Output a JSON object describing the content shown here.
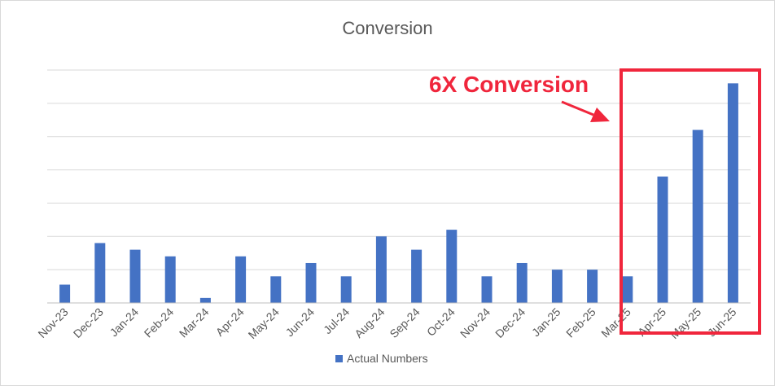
{
  "chart_data": {
    "type": "bar",
    "title": "Conversion",
    "xlabel": "",
    "ylabel": "",
    "categories": [
      "Nov-23",
      "Dec-23",
      "Jan-24",
      "Feb-24",
      "Mar-24",
      "Apr-24",
      "May-24",
      "Jun-24",
      "Jul-24",
      "Aug-24",
      "Sep-24",
      "Oct-24",
      "Nov-24",
      "Dec-24",
      "Jan-25",
      "Feb-25",
      "Mar-25",
      "Apr-25",
      "May-25",
      "Jun-25"
    ],
    "series": [
      {
        "name": "Actual Numbers",
        "color": "#4472c4",
        "values": [
          5.5,
          18,
          16,
          14,
          1.5,
          14,
          8,
          12,
          8,
          20,
          16,
          22,
          8,
          12,
          10,
          10,
          8,
          38,
          52,
          66
        ]
      }
    ],
    "ylim": [
      0,
      70
    ],
    "y_gridline_step": 10,
    "y_tick_labels_shown": false,
    "grid": true,
    "legend": "bottom",
    "x_tick_rotation": -45
  },
  "annotation": {
    "text": "6X Conversion",
    "color": "#f0263c",
    "arrow_icon": "arrow-right-down-icon",
    "highlight_categories": [
      "Apr-25",
      "May-25",
      "Jun-25"
    ]
  }
}
